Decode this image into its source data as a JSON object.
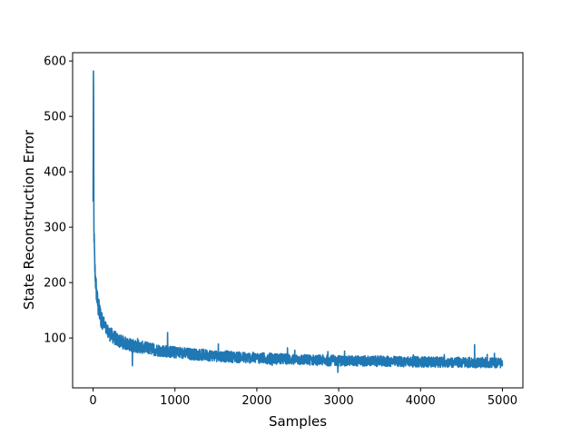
{
  "chart_data": {
    "type": "line",
    "title": "",
    "xlabel": "Samples",
    "ylabel": "State Reconstruction Error",
    "xlim": [
      -250,
      5250
    ],
    "ylim": [
      10,
      615
    ],
    "xticks": [
      0,
      1000,
      2000,
      3000,
      4000,
      5000
    ],
    "yticks": [
      100,
      200,
      300,
      400,
      500,
      600
    ],
    "grid": false,
    "legend": "none",
    "series": [
      {
        "color": "#1f77b4",
        "x": [
          0,
          5,
          10,
          20,
          30,
          40,
          50,
          60,
          80,
          100,
          130,
          160,
          200,
          250,
          300,
          400,
          500,
          600,
          800,
          1000,
          1200,
          1500,
          1800,
          2000,
          2500,
          3000,
          3500,
          4000,
          4500,
          5000
        ],
        "y": [
          340,
          582,
          300,
          230,
          205,
          185,
          170,
          158,
          145,
          135,
          125,
          115,
          108,
          102,
          96,
          90,
          86,
          83,
          78,
          74,
          71,
          68,
          65,
          64,
          61,
          59,
          58,
          57,
          56,
          55
        ],
        "noise_amplitude": 9,
        "notable_spikes": [
          {
            "x": 480,
            "y": 50
          },
          {
            "x": 910,
            "y": 110
          },
          {
            "x": 2990,
            "y": 38
          },
          {
            "x": 4660,
            "y": 88
          }
        ]
      }
    ]
  }
}
